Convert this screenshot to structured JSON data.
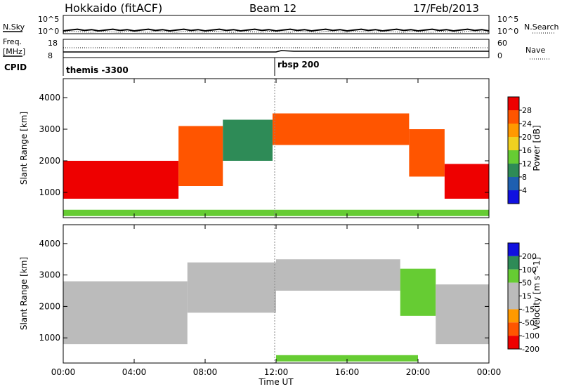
{
  "header": {
    "title": "Hokkaido (fitACF)",
    "beam": "Beam 12",
    "date": "17/Feb/2013"
  },
  "summary_panels": {
    "nsky": {
      "label": "N.Sky",
      "ticks": [
        "10^5",
        "10^0"
      ]
    },
    "nsearch": {
      "label": "N.Search",
      "ticks": [
        "10^5",
        "10^0"
      ]
    },
    "freq": {
      "label_line1": "Freq.",
      "label_line2": "[MHz]",
      "ticks": [
        "18",
        "8"
      ]
    },
    "nave": {
      "label": "Nave",
      "ticks": [
        "60",
        "0"
      ]
    },
    "cpid": {
      "label": "CPID",
      "segments": [
        "themis -3300",
        "rbsp 200"
      ]
    }
  },
  "chart_data": [
    {
      "type": "heatmap",
      "title": "",
      "xlabel": "Time UT",
      "ylabel": "Slant Range [km]",
      "xticks": [
        "00:00",
        "04:00",
        "08:00",
        "12:00",
        "16:00",
        "20:00",
        "00:00"
      ],
      "xlim_hours": [
        0,
        24
      ],
      "yticks": [
        1000,
        2000,
        3000,
        4000
      ],
      "ylim": [
        200,
        4600
      ],
      "colorbar": {
        "label": "Power [dB]",
        "ticks": [
          "4",
          "8",
          "12",
          "16",
          "20",
          "24",
          "28"
        ],
        "range": [
          0,
          30
        ],
        "colors": [
          "#1010e0",
          "#1e5fb0",
          "#2e8b57",
          "#66cc33",
          "#f0d020",
          "#ff9900",
          "#ff5500",
          "#ee0000"
        ]
      },
      "bands": [
        {
          "t": [
            0.0,
            6.5
          ],
          "range_km": [
            800,
            2000
          ],
          "db": 28
        },
        {
          "t": [
            6.5,
            9.0
          ],
          "range_km": [
            1200,
            3100
          ],
          "db": 26
        },
        {
          "t": [
            9.0,
            11.8
          ],
          "range_km": [
            2000,
            3300
          ],
          "db": 10
        },
        {
          "t": [
            11.8,
            19.5
          ],
          "range_km": [
            2500,
            3500
          ],
          "db": 26
        },
        {
          "t": [
            19.5,
            21.5
          ],
          "range_km": [
            1500,
            3000
          ],
          "db": 24
        },
        {
          "t": [
            21.5,
            24.0
          ],
          "range_km": [
            800,
            1900
          ],
          "db": 28
        },
        {
          "t": [
            0.0,
            24.0
          ],
          "range_km": [
            250,
            450
          ],
          "db": 14
        }
      ]
    },
    {
      "type": "heatmap",
      "title": "",
      "xlabel": "Time UT",
      "ylabel": "Slant Range [km]",
      "xticks": [
        "00:00",
        "04:00",
        "08:00",
        "12:00",
        "16:00",
        "20:00",
        "00:00"
      ],
      "xlim_hours": [
        0,
        24
      ],
      "yticks": [
        1000,
        2000,
        3000,
        4000
      ],
      "ylim": [
        200,
        4600
      ],
      "colorbar": {
        "label": "Velocity [m s^-1]",
        "ticks": [
          "200",
          "100",
          "50",
          "15",
          "-15",
          "-50",
          "-100",
          "-200"
        ],
        "range": [
          -250,
          250
        ],
        "colors": [
          "#ee0000",
          "#ff5500",
          "#ff9900",
          "#bbbbbb",
          "#bbbbbb",
          "#66cc33",
          "#2e8b57",
          "#1010e0"
        ]
      },
      "bands": [
        {
          "t": [
            0.0,
            7.0
          ],
          "range_km": [
            800,
            2800
          ],
          "vel": 0
        },
        {
          "t": [
            7.0,
            12.0
          ],
          "range_km": [
            1800,
            3400
          ],
          "vel": 0
        },
        {
          "t": [
            12.0,
            19.0
          ],
          "range_km": [
            2500,
            3500
          ],
          "vel": 0
        },
        {
          "t": [
            19.0,
            21.0
          ],
          "range_km": [
            1700,
            3200
          ],
          "vel": 60
        },
        {
          "t": [
            21.0,
            24.0
          ],
          "range_km": [
            800,
            2700
          ],
          "vel": 0
        },
        {
          "t": [
            12.0,
            20.0
          ],
          "range_km": [
            250,
            450
          ],
          "vel": 60
        }
      ]
    }
  ]
}
